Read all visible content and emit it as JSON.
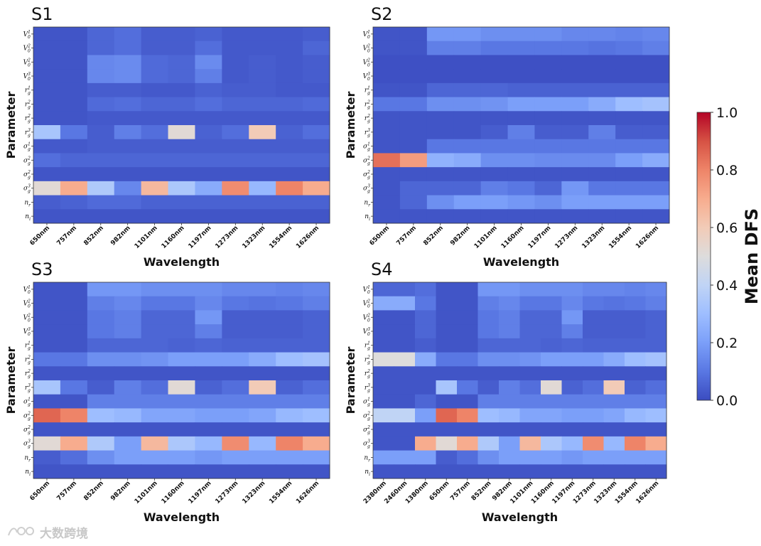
{
  "colorbar": {
    "label": "Mean DFS",
    "min": 0,
    "max": 1,
    "ticks": [
      "0.0",
      "0.2",
      "0.4",
      "0.6",
      "0.8",
      "1.0"
    ],
    "colormap": "coolwarm",
    "stops": [
      "#3b4cc0",
      "#5977e3",
      "#7b9ff9",
      "#9ebeff",
      "#c0d4f5",
      "#dddcdc",
      "#f2cbb7",
      "#f7ac8e",
      "#ee8468",
      "#d65244",
      "#b40426"
    ]
  },
  "watermark": {
    "text": "大数跨境"
  },
  "chart_data": [
    {
      "type": "heatmap",
      "title": "S1",
      "xlabel": "Wavelength",
      "ylabel": "Parameter",
      "x": [
        "650nm",
        "757nm",
        "852nm",
        "982nm",
        "1101nm",
        "1160nm",
        "1197nm",
        "1273nm",
        "1323nm",
        "1554nm",
        "1626nm"
      ],
      "y": [
        {
          "base": "V",
          "sub": "0",
          "sup": "1"
        },
        {
          "base": "V",
          "sub": "0",
          "sup": "2"
        },
        {
          "base": "V",
          "sub": "0",
          "sup": "2"
        },
        {
          "base": "V",
          "sub": "0",
          "sup": "3"
        },
        {
          "base": "r",
          "sub": "g",
          "sup": "1"
        },
        {
          "base": "r",
          "sub": "g",
          "sup": "2"
        },
        {
          "base": "r",
          "sub": "g",
          "sup": "2"
        },
        {
          "base": "r",
          "sub": "g",
          "sup": "3"
        },
        {
          "base": "σ",
          "sub": "g",
          "sup": "1"
        },
        {
          "base": "σ",
          "sub": "g",
          "sup": "2"
        },
        {
          "base": "σ",
          "sub": "g",
          "sup": "2"
        },
        {
          "base": "σ",
          "sub": "g",
          "sup": "3"
        },
        {
          "base": "n",
          "sub": "r",
          "sup": ""
        },
        {
          "base": "n",
          "sub": "i",
          "sup": ""
        }
      ],
      "values": [
        [
          0.02,
          0.02,
          0.06,
          0.08,
          0.04,
          0.04,
          0.05,
          0.03,
          0.03,
          0.03,
          0.04
        ],
        [
          0.02,
          0.02,
          0.06,
          0.08,
          0.04,
          0.04,
          0.08,
          0.03,
          0.03,
          0.03,
          0.06
        ],
        [
          0.02,
          0.02,
          0.14,
          0.15,
          0.07,
          0.06,
          0.15,
          0.03,
          0.04,
          0.03,
          0.04
        ],
        [
          0.02,
          0.02,
          0.14,
          0.15,
          0.07,
          0.06,
          0.12,
          0.03,
          0.04,
          0.03,
          0.04
        ],
        [
          0.02,
          0.02,
          0.04,
          0.04,
          0.03,
          0.03,
          0.05,
          0.04,
          0.04,
          0.03,
          0.03
        ],
        [
          0.02,
          0.02,
          0.07,
          0.08,
          0.06,
          0.06,
          0.08,
          0.06,
          0.06,
          0.06,
          0.07
        ],
        [
          0.02,
          0.02,
          0.03,
          0.03,
          0.03,
          0.03,
          0.03,
          0.03,
          0.03,
          0.03,
          0.03
        ],
        [
          0.33,
          0.1,
          0.04,
          0.12,
          0.08,
          0.52,
          0.05,
          0.08,
          0.6,
          0.05,
          0.08
        ],
        [
          0.03,
          0.03,
          0.04,
          0.04,
          0.04,
          0.04,
          0.04,
          0.04,
          0.04,
          0.04,
          0.04
        ],
        [
          0.08,
          0.06,
          0.06,
          0.06,
          0.06,
          0.06,
          0.06,
          0.06,
          0.06,
          0.06,
          0.06
        ],
        [
          0.02,
          0.02,
          0.02,
          0.02,
          0.02,
          0.02,
          0.02,
          0.02,
          0.02,
          0.02,
          0.02
        ],
        [
          0.52,
          0.7,
          0.35,
          0.14,
          0.66,
          0.34,
          0.24,
          0.78,
          0.28,
          0.8,
          0.7
        ],
        [
          0.04,
          0.05,
          0.07,
          0.07,
          0.05,
          0.05,
          0.05,
          0.05,
          0.05,
          0.05,
          0.05
        ],
        [
          0.02,
          0.02,
          0.02,
          0.02,
          0.02,
          0.02,
          0.02,
          0.02,
          0.02,
          0.02,
          0.02
        ]
      ]
    },
    {
      "type": "heatmap",
      "title": "S2",
      "xlabel": "Wavelength",
      "ylabel": "Parameter",
      "x": [
        "650nm",
        "757nm",
        "852nm",
        "982nm",
        "1101nm",
        "1160nm",
        "1197nm",
        "1273nm",
        "1323nm",
        "1554nm",
        "1626nm"
      ],
      "y": [
        {
          "base": "V",
          "sub": "0",
          "sup": "1"
        },
        {
          "base": "V",
          "sub": "0",
          "sup": "2"
        },
        {
          "base": "V",
          "sub": "0",
          "sup": "2"
        },
        {
          "base": "V",
          "sub": "0",
          "sup": "3"
        },
        {
          "base": "r",
          "sub": "g",
          "sup": "1"
        },
        {
          "base": "r",
          "sub": "g",
          "sup": "2"
        },
        {
          "base": "r",
          "sub": "g",
          "sup": "2"
        },
        {
          "base": "r",
          "sub": "g",
          "sup": "3"
        },
        {
          "base": "σ",
          "sub": "g",
          "sup": "1"
        },
        {
          "base": "σ",
          "sub": "g",
          "sup": "2"
        },
        {
          "base": "σ",
          "sub": "g",
          "sup": "2"
        },
        {
          "base": "σ",
          "sub": "g",
          "sup": "3"
        },
        {
          "base": "n",
          "sub": "r",
          "sup": ""
        },
        {
          "base": "n",
          "sub": "i",
          "sup": ""
        }
      ],
      "values": [
        [
          0.02,
          0.02,
          0.18,
          0.18,
          0.16,
          0.16,
          0.16,
          0.14,
          0.14,
          0.13,
          0.14
        ],
        [
          0.02,
          0.02,
          0.12,
          0.12,
          0.1,
          0.1,
          0.1,
          0.1,
          0.09,
          0.1,
          0.12
        ],
        [
          0.01,
          0.01,
          0.01,
          0.01,
          0.01,
          0.01,
          0.01,
          0.01,
          0.01,
          0.01,
          0.01
        ],
        [
          0.01,
          0.01,
          0.01,
          0.01,
          0.01,
          0.01,
          0.01,
          0.01,
          0.01,
          0.01,
          0.01
        ],
        [
          0.02,
          0.02,
          0.06,
          0.06,
          0.06,
          0.05,
          0.05,
          0.05,
          0.05,
          0.05,
          0.05
        ],
        [
          0.1,
          0.1,
          0.16,
          0.16,
          0.17,
          0.2,
          0.2,
          0.2,
          0.24,
          0.3,
          0.32
        ],
        [
          0.02,
          0.02,
          0.02,
          0.02,
          0.02,
          0.02,
          0.02,
          0.02,
          0.02,
          0.02,
          0.02
        ],
        [
          0.02,
          0.02,
          0.02,
          0.02,
          0.04,
          0.12,
          0.04,
          0.04,
          0.12,
          0.04,
          0.04
        ],
        [
          0.02,
          0.02,
          0.1,
          0.1,
          0.1,
          0.1,
          0.1,
          0.1,
          0.1,
          0.1,
          0.1
        ],
        [
          0.84,
          0.74,
          0.26,
          0.24,
          0.16,
          0.16,
          0.15,
          0.15,
          0.15,
          0.2,
          0.24
        ],
        [
          0.02,
          0.02,
          0.02,
          0.02,
          0.02,
          0.02,
          0.02,
          0.02,
          0.02,
          0.02,
          0.02
        ],
        [
          0.02,
          0.06,
          0.06,
          0.06,
          0.12,
          0.1,
          0.06,
          0.18,
          0.1,
          0.1,
          0.1
        ],
        [
          0.02,
          0.06,
          0.16,
          0.2,
          0.2,
          0.18,
          0.16,
          0.2,
          0.2,
          0.2,
          0.2
        ],
        [
          0.02,
          0.02,
          0.02,
          0.02,
          0.02,
          0.02,
          0.02,
          0.02,
          0.02,
          0.02,
          0.02
        ]
      ]
    },
    {
      "type": "heatmap",
      "title": "S3",
      "xlabel": "Wavelength",
      "ylabel": "Parameter",
      "x": [
        "650nm",
        "757nm",
        "852nm",
        "982nm",
        "1101nm",
        "1160nm",
        "1197nm",
        "1273nm",
        "1323nm",
        "1554nm",
        "1626nm"
      ],
      "y": [
        {
          "base": "V",
          "sub": "0",
          "sup": "1"
        },
        {
          "base": "V",
          "sub": "0",
          "sup": "2"
        },
        {
          "base": "V",
          "sub": "0",
          "sup": "2"
        },
        {
          "base": "V",
          "sub": "0",
          "sup": "3"
        },
        {
          "base": "r",
          "sub": "g",
          "sup": "1"
        },
        {
          "base": "r",
          "sub": "g",
          "sup": "2"
        },
        {
          "base": "r",
          "sub": "g",
          "sup": "2"
        },
        {
          "base": "r",
          "sub": "g",
          "sup": "3"
        },
        {
          "base": "σ",
          "sub": "g",
          "sup": "1"
        },
        {
          "base": "σ",
          "sub": "g",
          "sup": "2"
        },
        {
          "base": "σ",
          "sub": "g",
          "sup": "2"
        },
        {
          "base": "σ",
          "sub": "g",
          "sup": "3"
        },
        {
          "base": "n",
          "sub": "r",
          "sup": ""
        },
        {
          "base": "n",
          "sub": "i",
          "sup": ""
        }
      ],
      "values": [
        [
          0.02,
          0.02,
          0.18,
          0.18,
          0.16,
          0.16,
          0.16,
          0.14,
          0.14,
          0.13,
          0.14
        ],
        [
          0.02,
          0.02,
          0.12,
          0.14,
          0.1,
          0.1,
          0.14,
          0.1,
          0.09,
          0.1,
          0.12
        ],
        [
          0.02,
          0.02,
          0.1,
          0.12,
          0.06,
          0.06,
          0.18,
          0.04,
          0.04,
          0.04,
          0.05
        ],
        [
          0.02,
          0.02,
          0.1,
          0.12,
          0.06,
          0.06,
          0.12,
          0.04,
          0.04,
          0.04,
          0.05
        ],
        [
          0.02,
          0.02,
          0.06,
          0.06,
          0.06,
          0.05,
          0.06,
          0.05,
          0.05,
          0.05,
          0.05
        ],
        [
          0.1,
          0.1,
          0.16,
          0.16,
          0.17,
          0.2,
          0.2,
          0.2,
          0.24,
          0.3,
          0.32
        ],
        [
          0.02,
          0.02,
          0.02,
          0.02,
          0.02,
          0.02,
          0.02,
          0.02,
          0.02,
          0.02,
          0.02
        ],
        [
          0.33,
          0.1,
          0.04,
          0.12,
          0.08,
          0.52,
          0.05,
          0.08,
          0.6,
          0.05,
          0.08
        ],
        [
          0.02,
          0.02,
          0.12,
          0.12,
          0.12,
          0.12,
          0.12,
          0.12,
          0.12,
          0.12,
          0.12
        ],
        [
          0.86,
          0.8,
          0.3,
          0.28,
          0.22,
          0.22,
          0.2,
          0.2,
          0.22,
          0.28,
          0.3
        ],
        [
          0.02,
          0.02,
          0.02,
          0.02,
          0.02,
          0.02,
          0.02,
          0.02,
          0.02,
          0.02,
          0.02
        ],
        [
          0.52,
          0.7,
          0.35,
          0.2,
          0.66,
          0.34,
          0.28,
          0.78,
          0.28,
          0.8,
          0.7
        ],
        [
          0.04,
          0.08,
          0.16,
          0.2,
          0.2,
          0.2,
          0.18,
          0.2,
          0.2,
          0.2,
          0.2
        ],
        [
          0.02,
          0.02,
          0.02,
          0.02,
          0.02,
          0.02,
          0.02,
          0.02,
          0.02,
          0.02,
          0.02
        ]
      ]
    },
    {
      "type": "heatmap",
      "title": "S4",
      "xlabel": "Wavelength",
      "ylabel": "Parameter",
      "x": [
        "2380nm",
        "2460nm",
        "1380nm",
        "650nm",
        "757nm",
        "852nm",
        "982nm",
        "1101nm",
        "1160nm",
        "1197nm",
        "1273nm",
        "1323nm",
        "1554nm",
        "1626nm"
      ],
      "y": [
        {
          "base": "V",
          "sub": "0",
          "sup": "1"
        },
        {
          "base": "V",
          "sub": "0",
          "sup": "2"
        },
        {
          "base": "V",
          "sub": "0",
          "sup": "2"
        },
        {
          "base": "V",
          "sub": "0",
          "sup": "3"
        },
        {
          "base": "r",
          "sub": "g",
          "sup": "1"
        },
        {
          "base": "r",
          "sub": "g",
          "sup": "2"
        },
        {
          "base": "r",
          "sub": "g",
          "sup": "2"
        },
        {
          "base": "r",
          "sub": "g",
          "sup": "3"
        },
        {
          "base": "σ",
          "sub": "g",
          "sup": "1"
        },
        {
          "base": "σ",
          "sub": "g",
          "sup": "2"
        },
        {
          "base": "σ",
          "sub": "g",
          "sup": "2"
        },
        {
          "base": "σ",
          "sub": "g",
          "sup": "3"
        },
        {
          "base": "n",
          "sub": "r",
          "sup": ""
        },
        {
          "base": "n",
          "sub": "i",
          "sup": ""
        }
      ],
      "values": [
        [
          0.06,
          0.06,
          0.08,
          0.02,
          0.02,
          0.18,
          0.18,
          0.16,
          0.16,
          0.16,
          0.14,
          0.14,
          0.13,
          0.14
        ],
        [
          0.24,
          0.24,
          0.1,
          0.02,
          0.02,
          0.12,
          0.14,
          0.1,
          0.1,
          0.14,
          0.1,
          0.09,
          0.1,
          0.12
        ],
        [
          0.02,
          0.02,
          0.06,
          0.02,
          0.02,
          0.1,
          0.12,
          0.06,
          0.06,
          0.18,
          0.04,
          0.04,
          0.04,
          0.05
        ],
        [
          0.02,
          0.02,
          0.06,
          0.02,
          0.02,
          0.1,
          0.12,
          0.06,
          0.06,
          0.12,
          0.04,
          0.04,
          0.04,
          0.05
        ],
        [
          0.02,
          0.02,
          0.04,
          0.02,
          0.02,
          0.06,
          0.06,
          0.06,
          0.05,
          0.06,
          0.05,
          0.05,
          0.05,
          0.05
        ],
        [
          0.5,
          0.5,
          0.24,
          0.1,
          0.1,
          0.16,
          0.16,
          0.17,
          0.2,
          0.2,
          0.2,
          0.24,
          0.3,
          0.32
        ],
        [
          0.02,
          0.02,
          0.02,
          0.02,
          0.02,
          0.02,
          0.02,
          0.02,
          0.02,
          0.02,
          0.02,
          0.02,
          0.02,
          0.02
        ],
        [
          0.02,
          0.02,
          0.02,
          0.33,
          0.1,
          0.04,
          0.12,
          0.08,
          0.52,
          0.05,
          0.08,
          0.6,
          0.05,
          0.08
        ],
        [
          0.02,
          0.02,
          0.06,
          0.02,
          0.02,
          0.12,
          0.12,
          0.12,
          0.12,
          0.12,
          0.12,
          0.12,
          0.12,
          0.12
        ],
        [
          0.4,
          0.4,
          0.2,
          0.86,
          0.8,
          0.3,
          0.28,
          0.22,
          0.22,
          0.2,
          0.2,
          0.22,
          0.28,
          0.3
        ],
        [
          0.02,
          0.02,
          0.02,
          0.02,
          0.02,
          0.02,
          0.02,
          0.02,
          0.02,
          0.02,
          0.02,
          0.02,
          0.02,
          0.02
        ],
        [
          0.02,
          0.02,
          0.7,
          0.52,
          0.7,
          0.35,
          0.2,
          0.66,
          0.34,
          0.28,
          0.78,
          0.28,
          0.8,
          0.7
        ],
        [
          0.2,
          0.2,
          0.2,
          0.04,
          0.08,
          0.16,
          0.2,
          0.2,
          0.2,
          0.18,
          0.2,
          0.2,
          0.2,
          0.2
        ],
        [
          0.02,
          0.02,
          0.02,
          0.02,
          0.02,
          0.02,
          0.02,
          0.02,
          0.02,
          0.02,
          0.02,
          0.02,
          0.02,
          0.02
        ]
      ]
    }
  ]
}
